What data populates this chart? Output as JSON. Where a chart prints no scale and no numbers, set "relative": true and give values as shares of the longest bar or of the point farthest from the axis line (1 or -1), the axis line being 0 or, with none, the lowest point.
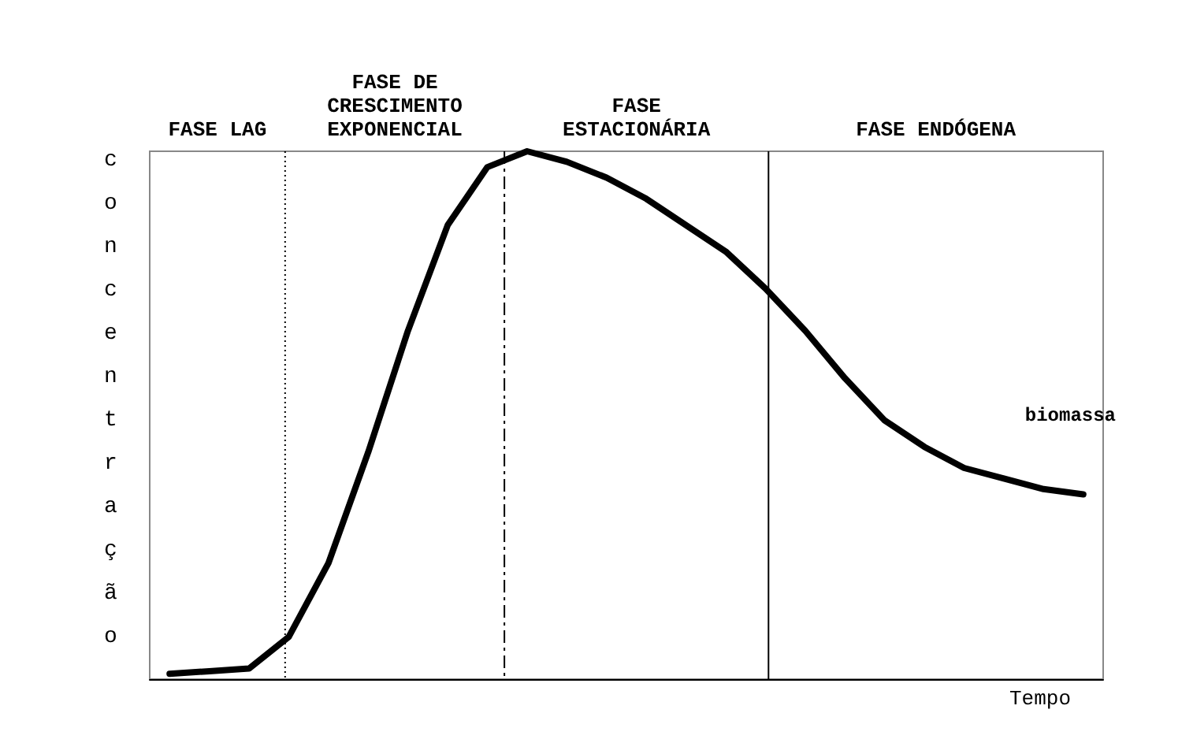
{
  "chart_data": {
    "type": "line",
    "relative": true,
    "xlabel": "Tempo",
    "ylabel": "concentração",
    "grid": false,
    "legend": false,
    "marker": "none",
    "line_style": "solid",
    "categories": [
      null,
      null,
      null,
      null,
      null,
      null,
      null,
      null,
      null,
      null,
      null,
      null,
      null,
      null,
      null,
      null,
      null,
      null,
      null,
      null,
      null,
      null,
      null,
      null
    ],
    "series": [
      {
        "name": "biomassa",
        "color": "#000000",
        "values": [
          0.01,
          0.015,
          0.02,
          0.08,
          0.22,
          0.43,
          0.66,
          0.86,
          0.97,
          1,
          0.98,
          0.95,
          0.91,
          0.86,
          0.81,
          0.74,
          0.66,
          0.57,
          0.49,
          0.44,
          0.4,
          0.38,
          0.36,
          0.35
        ]
      }
    ],
    "annotations": [
      "FASE LAG",
      "FASE DE\nCRESCIMENTO\nEXPONENCIAL",
      "FASE\nESTACIONÁRIA",
      "FASE ENDÓGENA"
    ]
  }
}
